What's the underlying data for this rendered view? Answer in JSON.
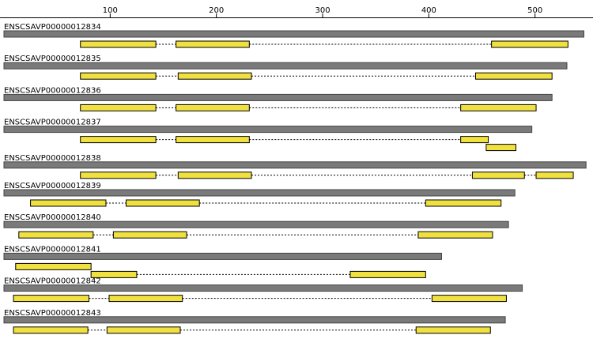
{
  "axis": {
    "ticks": [
      {
        "value": 100,
        "label": "100"
      },
      {
        "value": 200,
        "label": "200"
      },
      {
        "value": 300,
        "label": "300"
      },
      {
        "value": 400,
        "label": "400"
      },
      {
        "value": 500,
        "label": "500"
      }
    ]
  },
  "colors": {
    "protein_bar": "#7a7a7a",
    "exon_fill": "#f0e040",
    "exon_stroke": "#000000",
    "intron_line": "#000000"
  },
  "proteins": [
    {
      "id": "ENSCSAVP00000012834",
      "length": 546,
      "transcripts": [
        [
          [
            72,
            143
          ],
          [
            162,
            231
          ],
          [
            459,
            531
          ]
        ]
      ]
    },
    {
      "id": "ENSCSAVP00000012835",
      "length": 530,
      "transcripts": [
        [
          [
            72,
            143
          ],
          [
            164,
            233
          ],
          [
            444,
            516
          ]
        ]
      ]
    },
    {
      "id": "ENSCSAVP00000012836",
      "length": 516,
      "transcripts": [
        [
          [
            72,
            143
          ],
          [
            162,
            231
          ],
          [
            430,
            501
          ]
        ]
      ]
    },
    {
      "id": "ENSCSAVP00000012837",
      "length": 497,
      "transcripts": [
        [
          [
            72,
            143
          ],
          [
            162,
            231
          ],
          [
            430,
            456
          ]
        ],
        [
          [
            454,
            482
          ]
        ]
      ]
    },
    {
      "id": "ENSCSAVP00000012838",
      "length": 548,
      "transcripts": [
        [
          [
            72,
            143
          ],
          [
            164,
            233
          ],
          [
            441,
            490
          ],
          [
            501,
            536
          ]
        ]
      ]
    },
    {
      "id": "ENSCSAVP00000012839",
      "length": 481,
      "transcripts": [
        [
          [
            25,
            96
          ],
          [
            115,
            184
          ],
          [
            397,
            468
          ]
        ]
      ]
    },
    {
      "id": "ENSCSAVP00000012840",
      "length": 475,
      "transcripts": [
        [
          [
            14,
            84
          ],
          [
            103,
            172
          ],
          [
            390,
            460
          ]
        ]
      ]
    },
    {
      "id": "ENSCSAVP00000012841",
      "length": 412,
      "transcripts": [
        [
          [
            11,
            82
          ]
        ],
        [
          [
            82,
            125
          ],
          [
            326,
            397
          ]
        ]
      ]
    },
    {
      "id": "ENSCSAVP00000012842",
      "length": 488,
      "transcripts": [
        [
          [
            9,
            80
          ],
          [
            99,
            168
          ],
          [
            403,
            473
          ]
        ]
      ]
    },
    {
      "id": "ENSCSAVP00000012843",
      "length": 472,
      "transcripts": [
        [
          [
            9,
            79
          ],
          [
            97,
            166
          ],
          [
            388,
            458
          ]
        ]
      ]
    }
  ]
}
